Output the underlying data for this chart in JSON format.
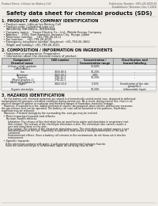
{
  "bg_color": "#f0ede8",
  "header_left": "Product Name: Lithium Ion Battery Cell",
  "header_right_line1": "Publication Number: SDS-LIB-000518",
  "header_right_line2": "Established / Revision: Dec.7.2018",
  "title": "Safety data sheet for chemical products (SDS)",
  "section1_title": "1. PRODUCT AND COMPANY IDENTIFICATION",
  "section1_lines": [
    "  • Product name: Lithium Ion Battery Cell",
    "  • Product code: Cylindrical-type cell",
    "     INR18650J, INR18650L, INR18650A",
    "  • Company name:    Sanyo Electric Co., Ltd., Mobile Energy Company",
    "  • Address:    2001, Kamikamachi, Sumoto-City, Hyogo, Japan",
    "  • Telephone number:    +81-799-26-4111",
    "  • Fax number:    +81-799-26-4129",
    "  • Emergency telephone number (daytime): +81-799-26-3662",
    "     (Night and holiday): +81-799-26-4101"
  ],
  "section2_title": "2. COMPOSITION / INFORMATION ON INGREDIENTS",
  "section2_sub1": "  • Substance or preparation: Preparation",
  "section2_sub2": "  • Information about the chemical nature of product:",
  "table_col_labels": [
    "Component /\nChemical name",
    "CAS number",
    "Concentration /\nConcentration range",
    "Classification and\nhazard labeling"
  ],
  "table_rows": [
    [
      "Lithium cobalt tantalate\n(LiMnCoMnO₂)",
      "-",
      "30-60%",
      "-"
    ],
    [
      "Iron",
      "7439-89-6",
      "10-20%",
      "-"
    ],
    [
      "Aluminum",
      "7429-90-5",
      "2-8%",
      "-"
    ],
    [
      "Graphite\n(Mixed graphite-1)\n(Artificial graphite-1)",
      "7782-42-5\n7782-42-5",
      "10-20%",
      "-"
    ],
    [
      "Copper",
      "7440-50-8",
      "5-15%",
      "Sensitization of the skin\ngroup No.2"
    ],
    [
      "Organic electrolyte",
      "-",
      "10-20%",
      "Inflammable liquid"
    ]
  ],
  "section3_title": "3. HAZARDS IDENTIFICATION",
  "section3_lines": [
    "   For the battery cell, chemical materials are stored in a hermetically sealed metal case, designed to withstand",
    "temperatures by pressure-controlled conditions during normal use. As a result, during normal use, there is no",
    "physical danger of ignition or explosion and therefore danger of hazardous materials leakage.",
    "   However, if exposed to a fire, added mechanical shocks, decomposed, when electric without any measures,",
    "the gas release vent can be operated. The battery cell case will be breached or fire-patterns. Hazardous",
    "materials may be released.",
    "   Moreover, if heated strongly by the surrounding fire, soot gas may be emitted."
  ],
  "section3_hazard_title": "  • Most important hazard and effects:",
  "section3_human_title": "     Human health effects:",
  "section3_human_lines": [
    "        Inhalation: The release of the electrolyte has an anesthesia action and stimulates in respiratory tract.",
    "        Skin contact: The release of the electrolyte stimulates a skin. The electrolyte skin contact causes a",
    "        sore and stimulation on the skin.",
    "        Eye contact: The release of the electrolyte stimulates eyes. The electrolyte eye contact causes a sore",
    "        and stimulation on the eye. Especially, a substance that causes a strong inflammation of the eye is",
    "        contained.",
    "        Environmental effects: Since a battery cell remains in the environment, do not throw out it into the",
    "        environment."
  ],
  "section3_specific_title": "  • Specific hazards:",
  "section3_specific_lines": [
    "     If the electrolyte contacts with water, it will generate detrimental hydrogen fluoride.",
    "     Since the used electrolyte is inflammable liquid, do not bring close to fire."
  ]
}
